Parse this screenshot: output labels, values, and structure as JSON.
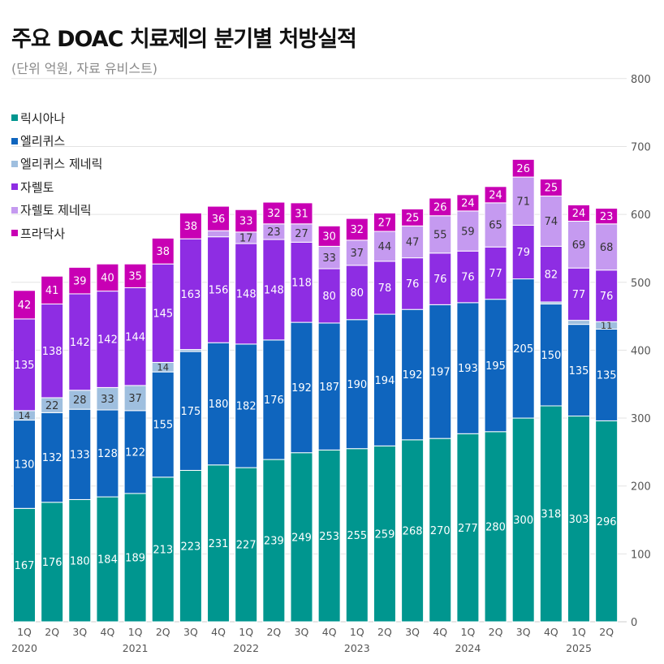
{
  "title": "주요 DOAC 치료제의 분기별 처방실적",
  "subtitle": "(단위 억원, 자료 유비스트)",
  "chart_data": {
    "type": "bar",
    "stacked": true,
    "title": "주요 DOAC 치료제의 분기별 처방실적",
    "subtitle": "(단위 억원, 자료 유비스트)",
    "ylim": [
      0,
      800
    ],
    "yticks": [
      0,
      100,
      200,
      300,
      400,
      500,
      600,
      700,
      800
    ],
    "grid": true,
    "legend_position": "top-left",
    "categories": [
      "1Q",
      "2Q",
      "3Q",
      "4Q",
      "1Q",
      "2Q",
      "3Q",
      "4Q",
      "1Q",
      "2Q",
      "3Q",
      "4Q",
      "1Q",
      "2Q",
      "3Q",
      "4Q",
      "1Q",
      "2Q",
      "3Q",
      "4Q",
      "1Q",
      "2Q"
    ],
    "year_labels": [
      {
        "index": 0,
        "label": "2020"
      },
      {
        "index": 4,
        "label": "2021"
      },
      {
        "index": 8,
        "label": "2022"
      },
      {
        "index": 12,
        "label": "2023"
      },
      {
        "index": 16,
        "label": "2024"
      },
      {
        "index": 20,
        "label": "2025"
      }
    ],
    "series": [
      {
        "name": "릭시아나",
        "color": "#00968f",
        "values": [
          167,
          176,
          180,
          184,
          189,
          213,
          223,
          231,
          227,
          239,
          249,
          253,
          255,
          259,
          268,
          270,
          277,
          280,
          300,
          318,
          303,
          296
        ]
      },
      {
        "name": "엘리퀴스",
        "color": "#0f65be",
        "values": [
          130,
          132,
          133,
          128,
          122,
          155,
          175,
          180,
          182,
          176,
          192,
          187,
          190,
          194,
          192,
          197,
          193,
          195,
          205,
          150,
          135,
          135
        ]
      },
      {
        "name": "엘리퀴스 제네릭",
        "color": "#9fbfdf",
        "values": [
          14,
          22,
          28,
          33,
          37,
          14,
          3,
          0,
          0,
          0,
          0,
          0,
          0,
          0,
          0,
          0,
          0,
          0,
          0,
          3,
          6,
          11
        ]
      },
      {
        "name": "자렐토",
        "color": "#8e2de3",
        "values": [
          135,
          138,
          142,
          142,
          144,
          145,
          163,
          156,
          148,
          148,
          118,
          80,
          80,
          78,
          76,
          76,
          76,
          77,
          79,
          82,
          77,
          76
        ]
      },
      {
        "name": "자렐토 제네릭",
        "color": "#c59af0",
        "values": [
          0,
          0,
          0,
          0,
          0,
          0,
          0,
          9,
          17,
          23,
          27,
          33,
          37,
          44,
          47,
          55,
          59,
          65,
          71,
          74,
          69,
          68
        ]
      },
      {
        "name": "프라닥사",
        "color": "#c800b4",
        "values": [
          42,
          41,
          39,
          40,
          35,
          38,
          38,
          36,
          33,
          32,
          31,
          30,
          32,
          27,
          25,
          26,
          24,
          24,
          26,
          25,
          24,
          23
        ]
      }
    ],
    "hidden_labels": {
      "엘리퀴스 제네릭": [
        6,
        7,
        8,
        9,
        10,
        11,
        12,
        13,
        14,
        15,
        16,
        17,
        18,
        19,
        20
      ],
      "자렐토 제네릭": [
        0,
        1,
        2,
        3,
        4,
        5,
        6,
        7
      ]
    }
  }
}
